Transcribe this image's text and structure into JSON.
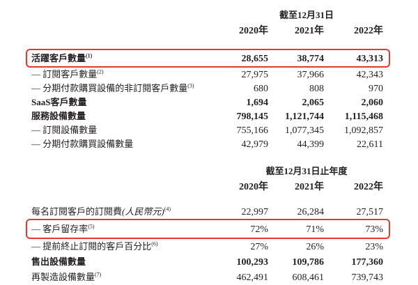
{
  "page": {
    "background": "#ffffff",
    "text_color": "#231f20",
    "highlight_color": "#e8382d"
  },
  "tables": [
    {
      "period": "截至12月31日",
      "years": [
        "2020年",
        "2021年",
        "2022年"
      ],
      "rows": [
        {
          "label": "活躍客戶數量",
          "sup": "(1)",
          "values": [
            "28,655",
            "38,774",
            "43,313"
          ],
          "bold": true,
          "highlight": true
        },
        {
          "label": "— 訂閱客戶數量",
          "sup": "(2)",
          "values": [
            "27,975",
            "37,966",
            "42,343"
          ]
        },
        {
          "label": "— 分期付款購買設備的非訂閱客戶數量",
          "sup": "(3)",
          "values": [
            "680",
            "808",
            "970"
          ]
        },
        {
          "label": "SaaS客戶數量",
          "values": [
            "1,694",
            "2,065",
            "2,060"
          ],
          "bold": true
        },
        {
          "label": "服務設備數量",
          "values": [
            "798,145",
            "1,121,744",
            "1,115,468"
          ],
          "bold": true
        },
        {
          "label": "— 訂閱設備數量",
          "values": [
            "755,166",
            "1,077,345",
            "1,092,857"
          ]
        },
        {
          "label": "— 分期付款購買設備數量",
          "values": [
            "42,979",
            "44,399",
            "22,611"
          ]
        }
      ]
    },
    {
      "period": "截至12月31日止年度",
      "years": [
        "2020年",
        "2021年",
        "2022年"
      ],
      "rows": [
        {
          "label": "每名訂閱客戶的訂閱費",
          "italic": "(人民幣元)",
          "sup": "(4)",
          "values": [
            "22,997",
            "26,284",
            "27,517"
          ]
        },
        {
          "label": "— 客戶留存率",
          "sup": "(5)",
          "values": [
            "72%",
            "71%",
            "73%"
          ],
          "highlight": true
        },
        {
          "label": "— 提前終止訂閱的客戶百分比",
          "sup": "(6)",
          "values": [
            "27%",
            "26%",
            "23%"
          ]
        },
        {
          "label": "售出設備數量",
          "values": [
            "100,293",
            "109,786",
            "177,360"
          ],
          "bold": true
        },
        {
          "label": "再製造設備數量",
          "sup": "(7)",
          "values": [
            "462,491",
            "608,461",
            "739,743"
          ]
        }
      ]
    }
  ]
}
